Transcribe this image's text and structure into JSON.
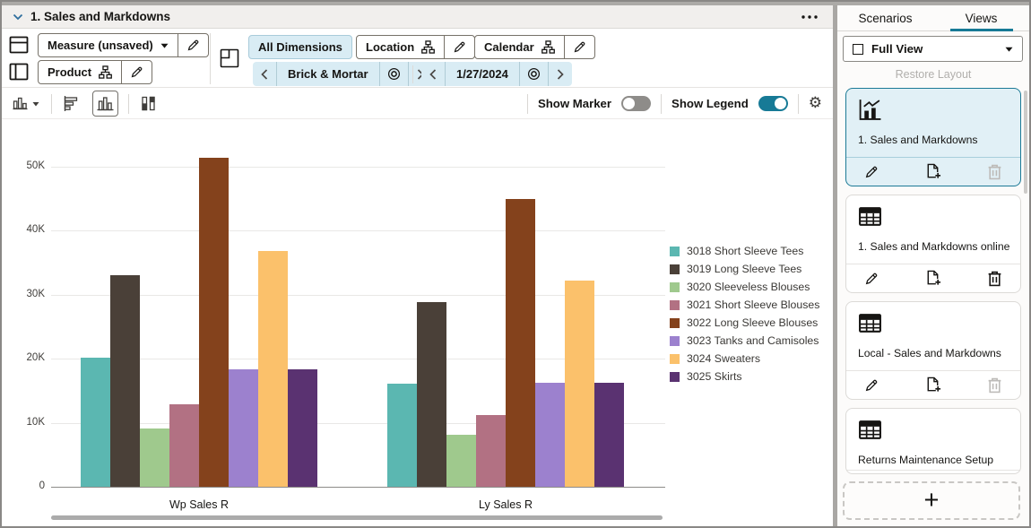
{
  "window": {
    "title": "1. Sales and Markdowns"
  },
  "icons": {
    "gear": "⚙"
  },
  "toolbar": {
    "measure_button": "Measure (unsaved)",
    "product_button": "Product",
    "all_dimensions_button": "All Dimensions",
    "location_button": "Location",
    "calendar_button": "Calendar",
    "location_context": "Brick & Mortar",
    "calendar_context": "1/27/2024"
  },
  "chart_toolbar": {
    "show_marker_label": "Show Marker",
    "show_marker_on": false,
    "show_legend_label": "Show Legend",
    "show_legend_on": true
  },
  "chart_data": {
    "type": "bar",
    "title": "1. Sales and Markdowns",
    "categories": [
      "Wp Sales R",
      "Ly Sales R"
    ],
    "series": [
      {
        "name": "3018 Short Sleeve Tees",
        "color": "#5BB7B1",
        "values": [
          20200,
          16100
        ]
      },
      {
        "name": "3019 Long Sleeve Tees",
        "color": "#4A4038",
        "values": [
          33100,
          28900
        ]
      },
      {
        "name": "3020 Sleeveless Blouses",
        "color": "#9FC98D",
        "values": [
          9100,
          8100
        ]
      },
      {
        "name": "3021 Short Sleeve Blouses",
        "color": "#B27183",
        "values": [
          12900,
          11200
        ]
      },
      {
        "name": "3022 Long Sleeve Blouses",
        "color": "#84421C",
        "values": [
          51400,
          45000
        ]
      },
      {
        "name": "3023 Tanks and Camisoles",
        "color": "#9C81CE",
        "values": [
          18300,
          16200
        ]
      },
      {
        "name": "3024 Sweaters",
        "color": "#FBC16B",
        "values": [
          36800,
          32200
        ]
      },
      {
        "name": "3025 Skirts",
        "color": "#5A3271",
        "values": [
          18300,
          16200
        ]
      }
    ],
    "xlabel": "",
    "ylabel": "",
    "ylim": [
      0,
      52000
    ],
    "yticks": [
      0,
      10000,
      20000,
      30000,
      40000,
      50000
    ],
    "ytick_labels": [
      "0",
      "10K",
      "20K",
      "30K",
      "40K",
      "50K"
    ],
    "grid": true,
    "legend_position": "right"
  },
  "right_panel": {
    "tabs": [
      {
        "label": "Scenarios",
        "active": false
      },
      {
        "label": "Views",
        "active": true
      }
    ],
    "view_selector_value": "Full View",
    "restore_layout_label": "Restore Layout",
    "views": [
      {
        "label": "1. Sales and Markdowns",
        "icon": "chart",
        "selected": true,
        "delete_enabled": false
      },
      {
        "label": "1. Sales and Markdowns online",
        "icon": "table",
        "selected": false,
        "delete_enabled": true
      },
      {
        "label": "Local - Sales and Markdowns",
        "icon": "table",
        "selected": false,
        "delete_enabled": false
      },
      {
        "label": "Returns Maintenance Setup",
        "icon": "table",
        "selected": false,
        "delete_enabled": true
      }
    ],
    "add_view_label": "+"
  }
}
